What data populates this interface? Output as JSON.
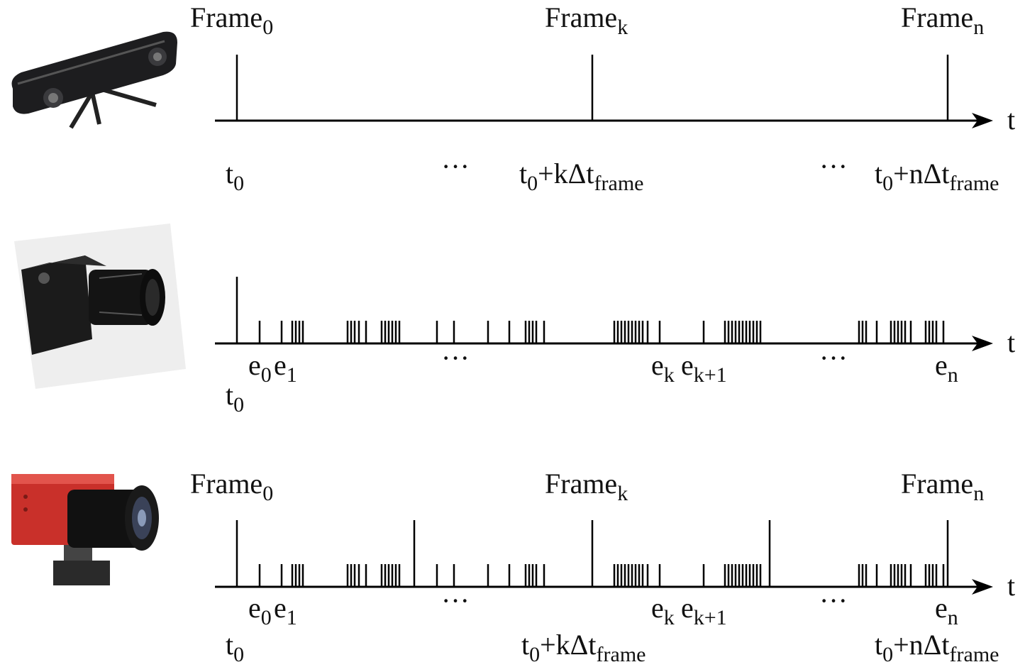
{
  "rows": [
    {
      "frame_labels": [
        [
          "Frame",
          "0"
        ],
        [
          "Frame",
          "k"
        ],
        [
          "Frame",
          "n"
        ]
      ],
      "time_labels": [
        [
          "t",
          "0"
        ],
        [
          "t",
          "0",
          "+kΔt",
          "frame"
        ],
        [
          "t",
          "0",
          "+nΔt",
          "frame"
        ]
      ],
      "ellipses": [
        "···",
        "···"
      ],
      "axis_label": "t"
    },
    {
      "event_labels": [
        [
          "e",
          "0"
        ],
        [
          "e",
          "1"
        ],
        [
          "e",
          "k"
        ],
        [
          "e",
          "k+1"
        ],
        [
          "e",
          "n"
        ]
      ],
      "time_labels": [
        [
          "t",
          "0"
        ]
      ],
      "ellipses": [
        "···",
        "···"
      ],
      "axis_label": "t"
    },
    {
      "frame_labels": [
        [
          "Frame",
          "0"
        ],
        [
          "Frame",
          "k"
        ],
        [
          "Frame",
          "n"
        ]
      ],
      "event_labels": [
        [
          "e",
          "0"
        ],
        [
          "e",
          "1"
        ],
        [
          "e",
          "k"
        ],
        [
          "e",
          "k+1"
        ],
        [
          "e",
          "n"
        ]
      ],
      "time_labels": [
        [
          "t",
          "0"
        ],
        [
          "t",
          "0",
          "+kΔt",
          "frame"
        ],
        [
          "t",
          "0",
          "+nΔt",
          "frame"
        ]
      ],
      "ellipses": [
        "···",
        "···"
      ],
      "axis_label": "t"
    }
  ]
}
